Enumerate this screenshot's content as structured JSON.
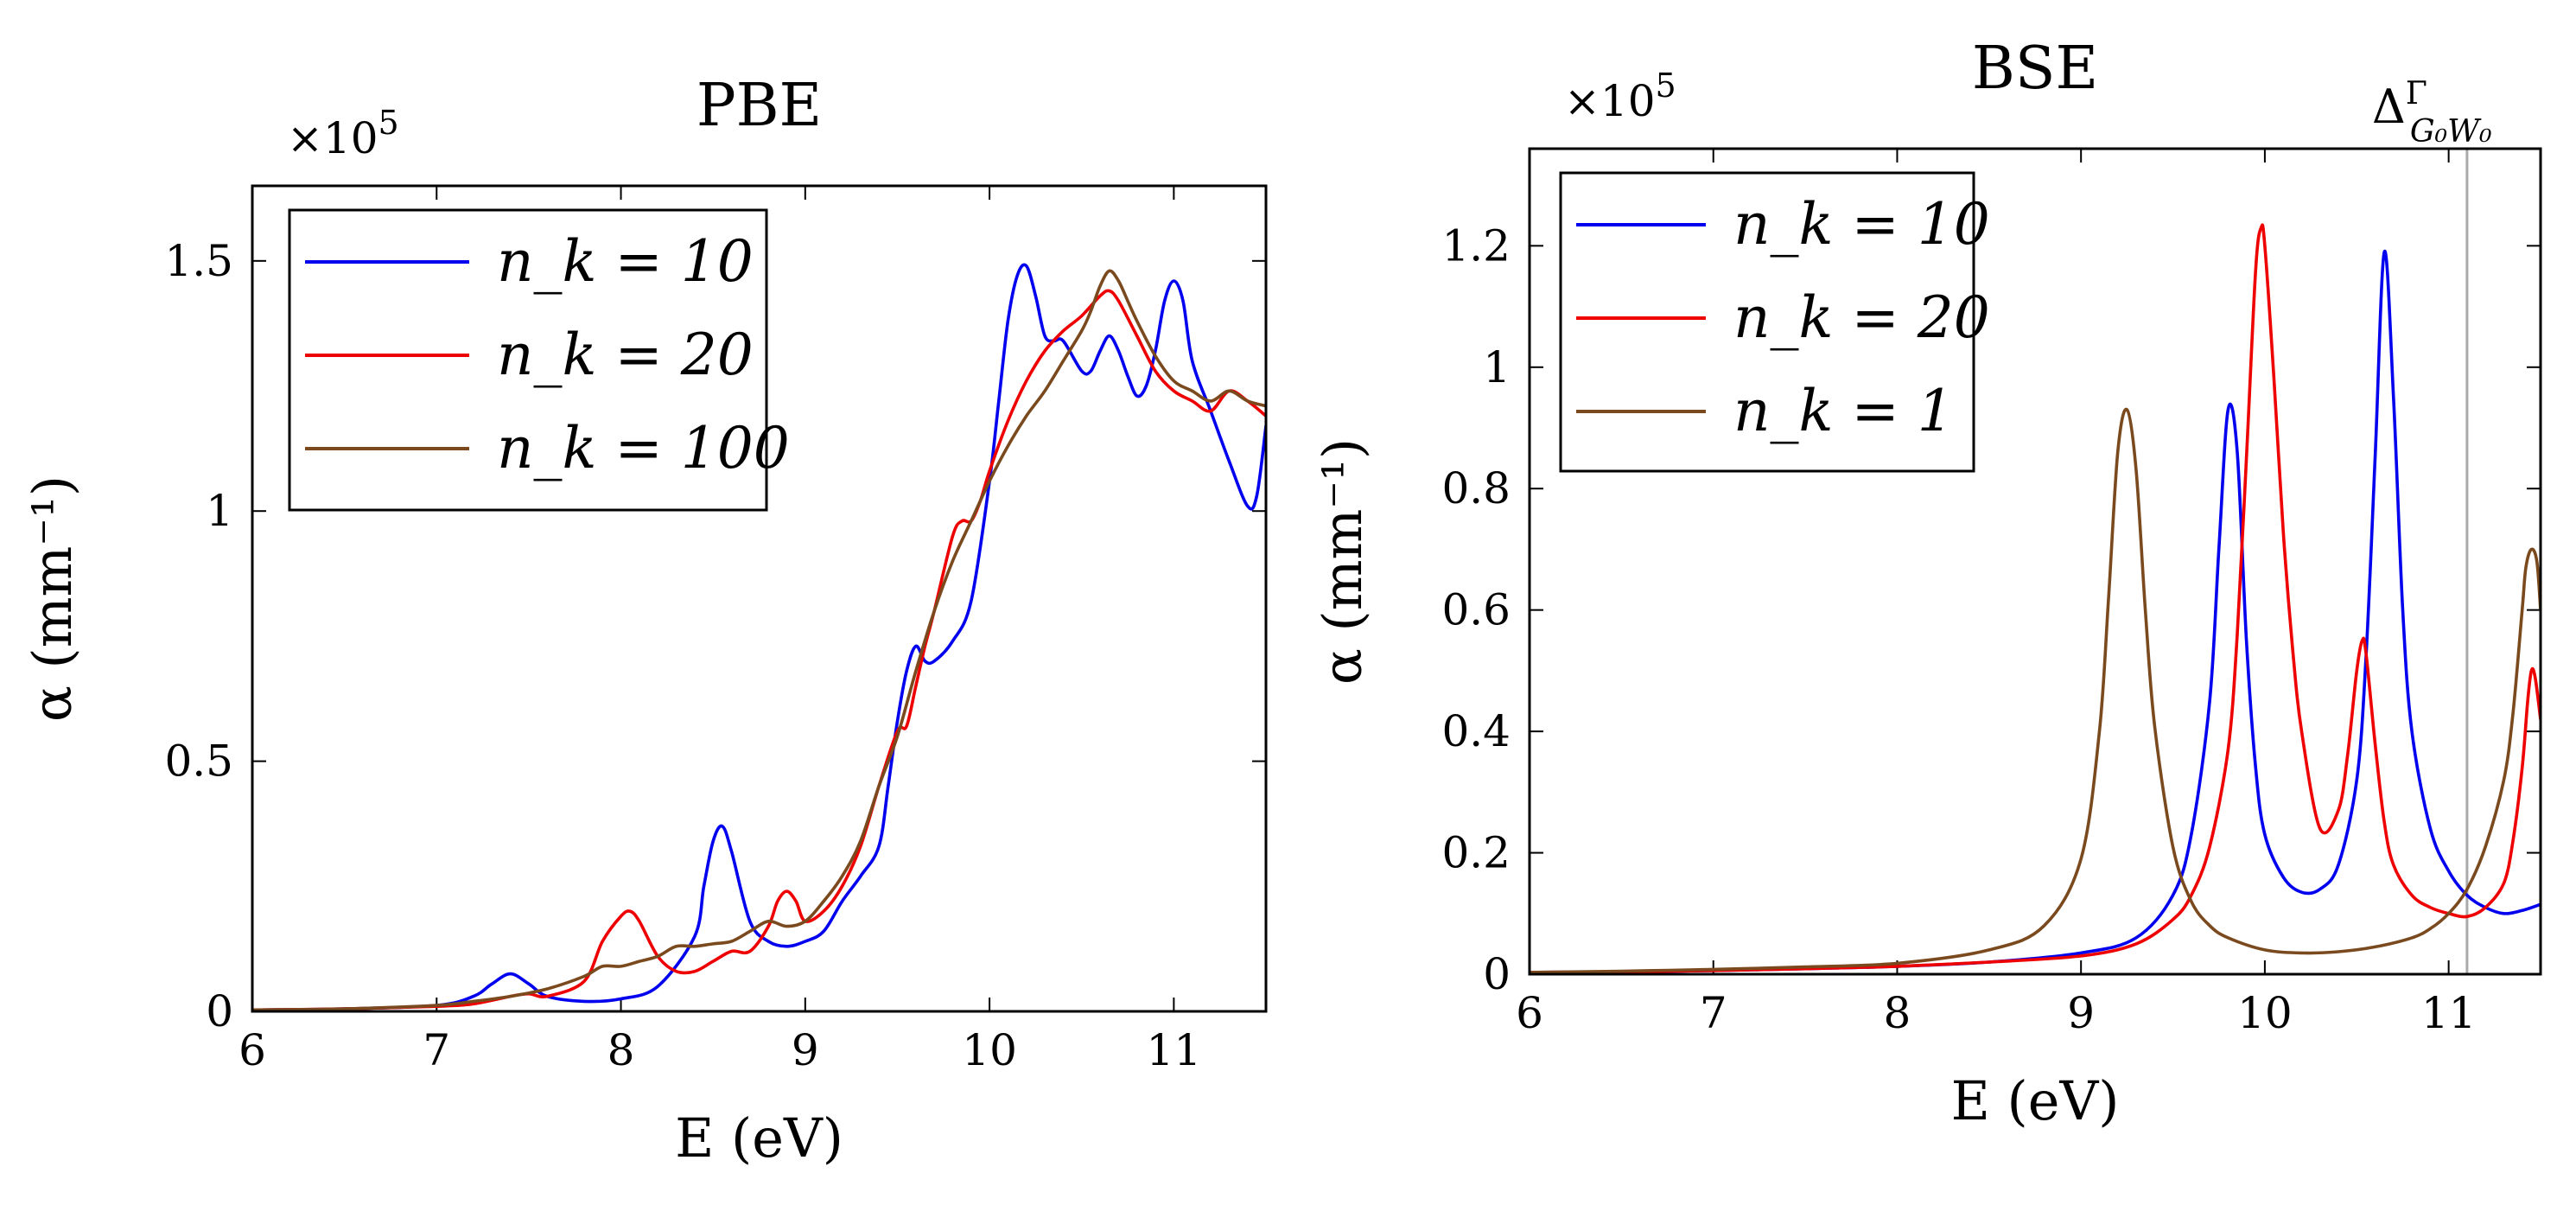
{
  "chart_data": [
    {
      "type": "line",
      "title": "PBE",
      "xlabel": "E (eV)",
      "ylabel": "α (mm⁻¹)",
      "multiplier": "×10⁵",
      "xlim": [
        6,
        11.5
      ],
      "ylim": [
        0,
        1.65
      ],
      "xticks": [
        6,
        7,
        8,
        9,
        10,
        11
      ],
      "yticks": [
        0,
        0.5,
        1,
        1.5
      ],
      "ytick_labels": [
        "0",
        "0.5",
        "1",
        "1.5"
      ],
      "legend_position": "top-left",
      "series": [
        {
          "name": "n_k = 10",
          "color": "#0000ee",
          "x": [
            6.0,
            6.5,
            7.0,
            7.2,
            7.3,
            7.4,
            7.5,
            7.6,
            7.8,
            8.0,
            8.2,
            8.4,
            8.45,
            8.5,
            8.55,
            8.6,
            8.7,
            8.8,
            8.9,
            9.0,
            9.1,
            9.2,
            9.3,
            9.4,
            9.45,
            9.5,
            9.55,
            9.6,
            9.65,
            9.7,
            9.8,
            9.9,
            10.0,
            10.05,
            10.1,
            10.15,
            10.2,
            10.25,
            10.3,
            10.35,
            10.4,
            10.5,
            10.55,
            10.6,
            10.65,
            10.7,
            10.75,
            10.8,
            10.85,
            10.9,
            10.95,
            11.0,
            11.05,
            11.1,
            11.2,
            11.3,
            11.4,
            11.45,
            11.5
          ],
          "y": [
            0.003,
            0.005,
            0.012,
            0.03,
            0.055,
            0.075,
            0.055,
            0.03,
            0.02,
            0.025,
            0.05,
            0.15,
            0.25,
            0.34,
            0.37,
            0.32,
            0.18,
            0.14,
            0.13,
            0.14,
            0.16,
            0.22,
            0.27,
            0.33,
            0.45,
            0.58,
            0.68,
            0.73,
            0.7,
            0.7,
            0.74,
            0.82,
            1.06,
            1.22,
            1.38,
            1.47,
            1.49,
            1.43,
            1.35,
            1.34,
            1.34,
            1.28,
            1.28,
            1.32,
            1.35,
            1.32,
            1.27,
            1.23,
            1.25,
            1.32,
            1.42,
            1.46,
            1.42,
            1.3,
            1.2,
            1.1,
            1.01,
            1.03,
            1.17
          ]
        },
        {
          "name": "n_k = 20",
          "color": "#ee0000",
          "x": [
            6.0,
            6.5,
            7.0,
            7.2,
            7.4,
            7.5,
            7.6,
            7.8,
            7.9,
            8.0,
            8.05,
            8.1,
            8.2,
            8.3,
            8.4,
            8.5,
            8.6,
            8.7,
            8.8,
            8.85,
            8.9,
            8.95,
            9.0,
            9.1,
            9.2,
            9.3,
            9.4,
            9.5,
            9.55,
            9.6,
            9.65,
            9.7,
            9.8,
            9.85,
            9.9,
            9.95,
            10.0,
            10.1,
            10.2,
            10.3,
            10.4,
            10.5,
            10.6,
            10.65,
            10.7,
            10.8,
            10.9,
            11.0,
            11.1,
            11.2,
            11.3,
            11.4,
            11.5
          ],
          "y": [
            0.003,
            0.005,
            0.01,
            0.015,
            0.03,
            0.035,
            0.03,
            0.06,
            0.14,
            0.19,
            0.2,
            0.18,
            0.11,
            0.08,
            0.08,
            0.1,
            0.12,
            0.12,
            0.17,
            0.22,
            0.24,
            0.22,
            0.18,
            0.2,
            0.25,
            0.33,
            0.45,
            0.56,
            0.57,
            0.65,
            0.73,
            0.8,
            0.95,
            0.98,
            0.98,
            1.02,
            1.08,
            1.18,
            1.26,
            1.32,
            1.36,
            1.39,
            1.43,
            1.44,
            1.42,
            1.35,
            1.28,
            1.24,
            1.22,
            1.2,
            1.24,
            1.22,
            1.19
          ]
        },
        {
          "name": "n_k = 100",
          "color": "#7a4a1e",
          "x": [
            6.0,
            6.5,
            7.0,
            7.2,
            7.4,
            7.6,
            7.8,
            7.9,
            8.0,
            8.1,
            8.2,
            8.3,
            8.4,
            8.5,
            8.6,
            8.7,
            8.8,
            8.9,
            9.0,
            9.1,
            9.2,
            9.3,
            9.4,
            9.5,
            9.6,
            9.7,
            9.8,
            9.9,
            10.0,
            10.1,
            10.2,
            10.3,
            10.4,
            10.5,
            10.55,
            10.6,
            10.65,
            10.7,
            10.75,
            10.8,
            10.9,
            11.0,
            11.1,
            11.2,
            11.3,
            11.4,
            11.5
          ],
          "y": [
            0.003,
            0.005,
            0.012,
            0.02,
            0.03,
            0.045,
            0.07,
            0.09,
            0.09,
            0.1,
            0.11,
            0.13,
            0.13,
            0.135,
            0.14,
            0.16,
            0.18,
            0.17,
            0.18,
            0.22,
            0.27,
            0.34,
            0.45,
            0.55,
            0.68,
            0.8,
            0.9,
            0.98,
            1.06,
            1.13,
            1.19,
            1.24,
            1.3,
            1.36,
            1.4,
            1.45,
            1.48,
            1.46,
            1.42,
            1.38,
            1.31,
            1.26,
            1.24,
            1.22,
            1.24,
            1.22,
            1.21
          ]
        }
      ]
    },
    {
      "type": "line",
      "title": "BSE",
      "xlabel": "E (eV)",
      "ylabel": "α (mm⁻¹)",
      "multiplier": "×10⁵",
      "xlim": [
        6,
        11.5
      ],
      "ylim": [
        0,
        1.36
      ],
      "xticks": [
        6,
        7,
        8,
        9,
        10,
        11
      ],
      "yticks": [
        0,
        0.2,
        0.4,
        0.6,
        0.8,
        1,
        1.2
      ],
      "ytick_labels": [
        "0",
        "0.2",
        "0.4",
        "0.6",
        "0.8",
        "1",
        "1.2"
      ],
      "legend_position": "top-left",
      "annotation": {
        "label": "Δ",
        "superscript": "Γ",
        "subscript": "G₀W₀",
        "x": 11.1
      },
      "series": [
        {
          "name": "n_k = 10",
          "color": "#0000ee",
          "x": [
            6.0,
            6.5,
            7.0,
            7.5,
            8.0,
            8.5,
            9.0,
            9.3,
            9.5,
            9.6,
            9.7,
            9.75,
            9.8,
            9.85,
            9.9,
            9.95,
            10.0,
            10.1,
            10.2,
            10.3,
            10.4,
            10.5,
            10.55,
            10.6,
            10.65,
            10.7,
            10.75,
            10.8,
            10.9,
            11.0,
            11.1,
            11.2,
            11.3,
            11.4,
            11.5
          ],
          "y": [
            0.003,
            0.004,
            0.006,
            0.009,
            0.013,
            0.02,
            0.035,
            0.06,
            0.13,
            0.23,
            0.45,
            0.7,
            0.93,
            0.86,
            0.55,
            0.34,
            0.23,
            0.16,
            0.135,
            0.14,
            0.18,
            0.32,
            0.52,
            0.85,
            1.19,
            0.95,
            0.6,
            0.4,
            0.24,
            0.17,
            0.13,
            0.11,
            0.1,
            0.105,
            0.115
          ]
        },
        {
          "name": "n_k = 20",
          "color": "#ee0000",
          "x": [
            6.0,
            6.5,
            7.0,
            7.5,
            8.0,
            8.5,
            9.0,
            9.3,
            9.5,
            9.6,
            9.7,
            9.8,
            9.85,
            9.9,
            9.95,
            9.98,
            10.0,
            10.05,
            10.1,
            10.15,
            10.2,
            10.3,
            10.4,
            10.45,
            10.5,
            10.53,
            10.55,
            10.6,
            10.65,
            10.7,
            10.8,
            10.9,
            11.0,
            11.1,
            11.2,
            11.3,
            11.35,
            11.4,
            11.43,
            11.45,
            11.47,
            11.5
          ],
          "y": [
            0.003,
            0.004,
            0.006,
            0.009,
            0.013,
            0.02,
            0.03,
            0.05,
            0.09,
            0.13,
            0.21,
            0.37,
            0.56,
            0.85,
            1.16,
            1.23,
            1.2,
            0.98,
            0.73,
            0.54,
            0.4,
            0.24,
            0.27,
            0.36,
            0.5,
            0.55,
            0.53,
            0.38,
            0.25,
            0.18,
            0.13,
            0.11,
            0.1,
            0.095,
            0.11,
            0.15,
            0.22,
            0.34,
            0.45,
            0.5,
            0.49,
            0.42
          ]
        },
        {
          "name": "n_k = 1",
          "color": "#7a4a1e",
          "x": [
            6.0,
            6.5,
            7.0,
            7.5,
            8.0,
            8.5,
            8.8,
            9.0,
            9.1,
            9.15,
            9.2,
            9.25,
            9.3,
            9.35,
            9.4,
            9.5,
            9.6,
            9.7,
            9.8,
            10.0,
            10.2,
            10.4,
            10.6,
            10.8,
            10.9,
            11.0,
            11.1,
            11.2,
            11.3,
            11.35,
            11.4,
            11.42,
            11.45,
            11.48,
            11.5
          ],
          "y": [
            0.003,
            0.005,
            0.008,
            0.012,
            0.018,
            0.04,
            0.08,
            0.19,
            0.4,
            0.62,
            0.86,
            0.93,
            0.83,
            0.6,
            0.41,
            0.21,
            0.12,
            0.08,
            0.06,
            0.04,
            0.035,
            0.037,
            0.045,
            0.06,
            0.075,
            0.1,
            0.14,
            0.21,
            0.32,
            0.43,
            0.6,
            0.67,
            0.7,
            0.68,
            0.6
          ]
        }
      ]
    }
  ]
}
